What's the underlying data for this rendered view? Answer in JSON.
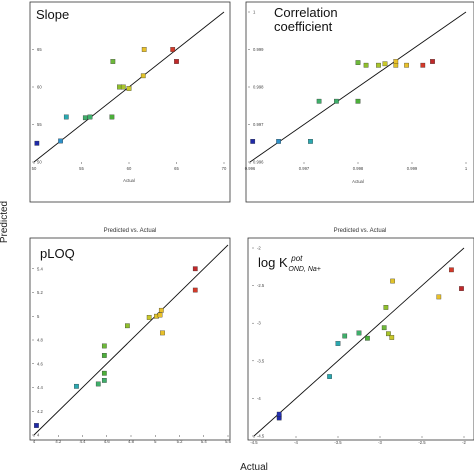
{
  "figure": {
    "ylabel": "Predicted",
    "xlabel": "Actual"
  },
  "chart_data": [
    {
      "type": "scatter",
      "title": "Slope",
      "subtitle": "Predicted vs. Actual",
      "xlabel": "Actual",
      "ylabel": "",
      "xlim": [
        50,
        70
      ],
      "ylim": [
        50,
        70
      ],
      "xticks": [
        50,
        55,
        60,
        65,
        70
      ],
      "yticks": [
        50,
        55,
        60,
        65
      ],
      "xtick_labels": [
        "50",
        "55",
        "60",
        "65",
        "70"
      ],
      "ytick_labels": [
        "50",
        "55",
        "60",
        "65"
      ],
      "fit_line": [
        [
          50,
          50
        ],
        [
          70,
          70
        ]
      ],
      "points": [
        {
          "x": 50.3,
          "y": 52.5,
          "color": "#1f2aa8"
        },
        {
          "x": 52.8,
          "y": 52.8,
          "color": "#2d8fc7"
        },
        {
          "x": 53.4,
          "y": 56.0,
          "color": "#2aa8b0"
        },
        {
          "x": 55.4,
          "y": 55.9,
          "color": "#3fae6a"
        },
        {
          "x": 55.9,
          "y": 56.0,
          "color": "#3fae6a"
        },
        {
          "x": 58.2,
          "y": 56.0,
          "color": "#4caf3a"
        },
        {
          "x": 58.3,
          "y": 63.4,
          "color": "#6db83a"
        },
        {
          "x": 59.0,
          "y": 60.0,
          "color": "#8fbf2c"
        },
        {
          "x": 59.4,
          "y": 60.0,
          "color": "#a8c42a"
        },
        {
          "x": 60.0,
          "y": 59.8,
          "color": "#c9c82a"
        },
        {
          "x": 61.5,
          "y": 61.5,
          "color": "#e0c22a"
        },
        {
          "x": 61.6,
          "y": 65.0,
          "color": "#e8c02a"
        },
        {
          "x": 64.6,
          "y": 65.0,
          "color": "#d43a2a"
        },
        {
          "x": 65.0,
          "y": 63.4,
          "color": "#c0282a"
        }
      ]
    },
    {
      "type": "scatter",
      "title": "Correlation coefficient",
      "subtitle": "Predicted vs. Actual",
      "xlabel": "Actual",
      "ylabel": "",
      "xlim": [
        0.996,
        1.0
      ],
      "ylim": [
        0.996,
        1.0
      ],
      "xticks": [
        0.996,
        0.997,
        0.998,
        0.999,
        1.0
      ],
      "yticks": [
        0.996,
        0.997,
        0.998,
        0.999,
        1.0
      ],
      "xtick_labels": [
        "0.996",
        "0.997",
        "0.998",
        "0.999",
        "1"
      ],
      "ytick_labels": [
        "0.996",
        "0.997",
        "0.998",
        "0.999",
        "1"
      ],
      "fit_line": [
        [
          0.996,
          0.996
        ],
        [
          1.0,
          1.0
        ]
      ],
      "points": [
        {
          "x": 0.99605,
          "y": 0.99655,
          "color": "#1f2aa8"
        },
        {
          "x": 0.99653,
          "y": 0.99655,
          "color": "#2d8fc7"
        },
        {
          "x": 0.99712,
          "y": 0.99655,
          "color": "#2aa8b0"
        },
        {
          "x": 0.99728,
          "y": 0.99762,
          "color": "#3fae6a"
        },
        {
          "x": 0.9976,
          "y": 0.99762,
          "color": "#3fae6a"
        },
        {
          "x": 0.998,
          "y": 0.99762,
          "color": "#4caf3a"
        },
        {
          "x": 0.998,
          "y": 0.99865,
          "color": "#6db83a"
        },
        {
          "x": 0.99815,
          "y": 0.99858,
          "color": "#8fbf2c"
        },
        {
          "x": 0.99838,
          "y": 0.99858,
          "color": "#a8c42a"
        },
        {
          "x": 0.9985,
          "y": 0.99862,
          "color": "#c9c82a"
        },
        {
          "x": 0.9987,
          "y": 0.99858,
          "color": "#e0c22a"
        },
        {
          "x": 0.9987,
          "y": 0.99868,
          "color": "#e8c02a"
        },
        {
          "x": 0.9989,
          "y": 0.99858,
          "color": "#e8c02a"
        },
        {
          "x": 0.9992,
          "y": 0.99858,
          "color": "#d43a2a"
        },
        {
          "x": 0.99938,
          "y": 0.99868,
          "color": "#c0282a"
        }
      ]
    },
    {
      "type": "scatter",
      "title": "pLOQ",
      "subtitle": "",
      "xlabel": "",
      "ylabel": "",
      "xlim": [
        4.0,
        5.6
      ],
      "ylim": [
        4.0,
        5.6
      ],
      "xticks": [
        4.0,
        4.2,
        4.4,
        4.6,
        4.8,
        5.0,
        5.2,
        5.4,
        5.6
      ],
      "yticks": [
        4.0,
        4.2,
        4.4,
        4.6,
        4.8,
        5.0,
        5.2,
        5.4
      ],
      "xtick_labels": [
        "4",
        "4.2",
        "4.4",
        "4.6",
        "4.8",
        "5",
        "5.2",
        "5.4",
        "5.6"
      ],
      "ytick_labels": [
        "4",
        "4.2",
        "4.4",
        "4.6",
        "4.8",
        "5",
        "5.2",
        "5.4"
      ],
      "fit_line": [
        [
          4.0,
          4.0
        ],
        [
          5.6,
          5.6
        ]
      ],
      "points": [
        {
          "x": 4.02,
          "y": 4.08,
          "color": "#1f2aa8"
        },
        {
          "x": 4.35,
          "y": 4.41,
          "color": "#2aa8b0"
        },
        {
          "x": 4.53,
          "y": 4.43,
          "color": "#3fae6a"
        },
        {
          "x": 4.58,
          "y": 4.46,
          "color": "#3fae6a"
        },
        {
          "x": 4.58,
          "y": 4.52,
          "color": "#4caf3a"
        },
        {
          "x": 4.58,
          "y": 4.67,
          "color": "#4caf3a"
        },
        {
          "x": 4.58,
          "y": 4.75,
          "color": "#6db83a"
        },
        {
          "x": 4.77,
          "y": 4.92,
          "color": "#8fbf2c"
        },
        {
          "x": 4.95,
          "y": 4.99,
          "color": "#c9c82a"
        },
        {
          "x": 5.01,
          "y": 5.0,
          "color": "#e0c22a"
        },
        {
          "x": 5.04,
          "y": 5.01,
          "color": "#e8c02a"
        },
        {
          "x": 5.05,
          "y": 5.05,
          "color": "#e8c02a"
        },
        {
          "x": 5.06,
          "y": 4.86,
          "color": "#e8c02a"
        },
        {
          "x": 5.33,
          "y": 5.22,
          "color": "#d43a2a"
        },
        {
          "x": 5.33,
          "y": 5.4,
          "color": "#c0282a"
        }
      ]
    },
    {
      "type": "scatter",
      "title": "log K",
      "title_sup": "pot",
      "title_sub": "OND, Na+",
      "subtitle": "",
      "xlabel": "",
      "ylabel": "",
      "xlim": [
        -4.5,
        -2.0
      ],
      "ylim": [
        -4.5,
        -2.0
      ],
      "xticks": [
        -4.5,
        -4.0,
        -3.5,
        -3.0,
        -2.5,
        -2.0
      ],
      "yticks": [
        -4.5,
        -4.0,
        -3.5,
        -3.0,
        -2.5,
        -2.0
      ],
      "xtick_labels": [
        "-4.5",
        "-4",
        "-3.5",
        "-3",
        "-2.5",
        "-2"
      ],
      "ytick_labels": [
        "-4.5",
        "-4",
        "-3.5",
        "-3",
        "-2.5",
        "-2"
      ],
      "fit_line": [
        [
          -4.5,
          -4.5
        ],
        [
          -2.0,
          -2.0
        ]
      ],
      "points": [
        {
          "x": -4.2,
          "y": -4.24,
          "color": "#1f2aa8"
        },
        {
          "x": -4.2,
          "y": -4.26,
          "color": "#1f2aa8"
        },
        {
          "x": -4.2,
          "y": -4.21,
          "color": "#2530b0"
        },
        {
          "x": -3.6,
          "y": -3.71,
          "color": "#2aa8b0"
        },
        {
          "x": -3.5,
          "y": -3.27,
          "color": "#2aa8b0"
        },
        {
          "x": -3.42,
          "y": -3.17,
          "color": "#3fae6a"
        },
        {
          "x": -3.25,
          "y": -3.13,
          "color": "#3fae6a"
        },
        {
          "x": -3.15,
          "y": -3.2,
          "color": "#4caf3a"
        },
        {
          "x": -2.95,
          "y": -3.06,
          "color": "#6db83a"
        },
        {
          "x": -2.93,
          "y": -2.79,
          "color": "#8fbf2c"
        },
        {
          "x": -2.9,
          "y": -3.14,
          "color": "#a8c42a"
        },
        {
          "x": -2.86,
          "y": -3.19,
          "color": "#c9c82a"
        },
        {
          "x": -2.85,
          "y": -2.44,
          "color": "#e0c22a"
        },
        {
          "x": -2.3,
          "y": -2.65,
          "color": "#e8c02a"
        },
        {
          "x": -2.15,
          "y": -2.29,
          "color": "#d43a2a"
        },
        {
          "x": -2.03,
          "y": -2.54,
          "color": "#c0282a"
        }
      ]
    }
  ]
}
